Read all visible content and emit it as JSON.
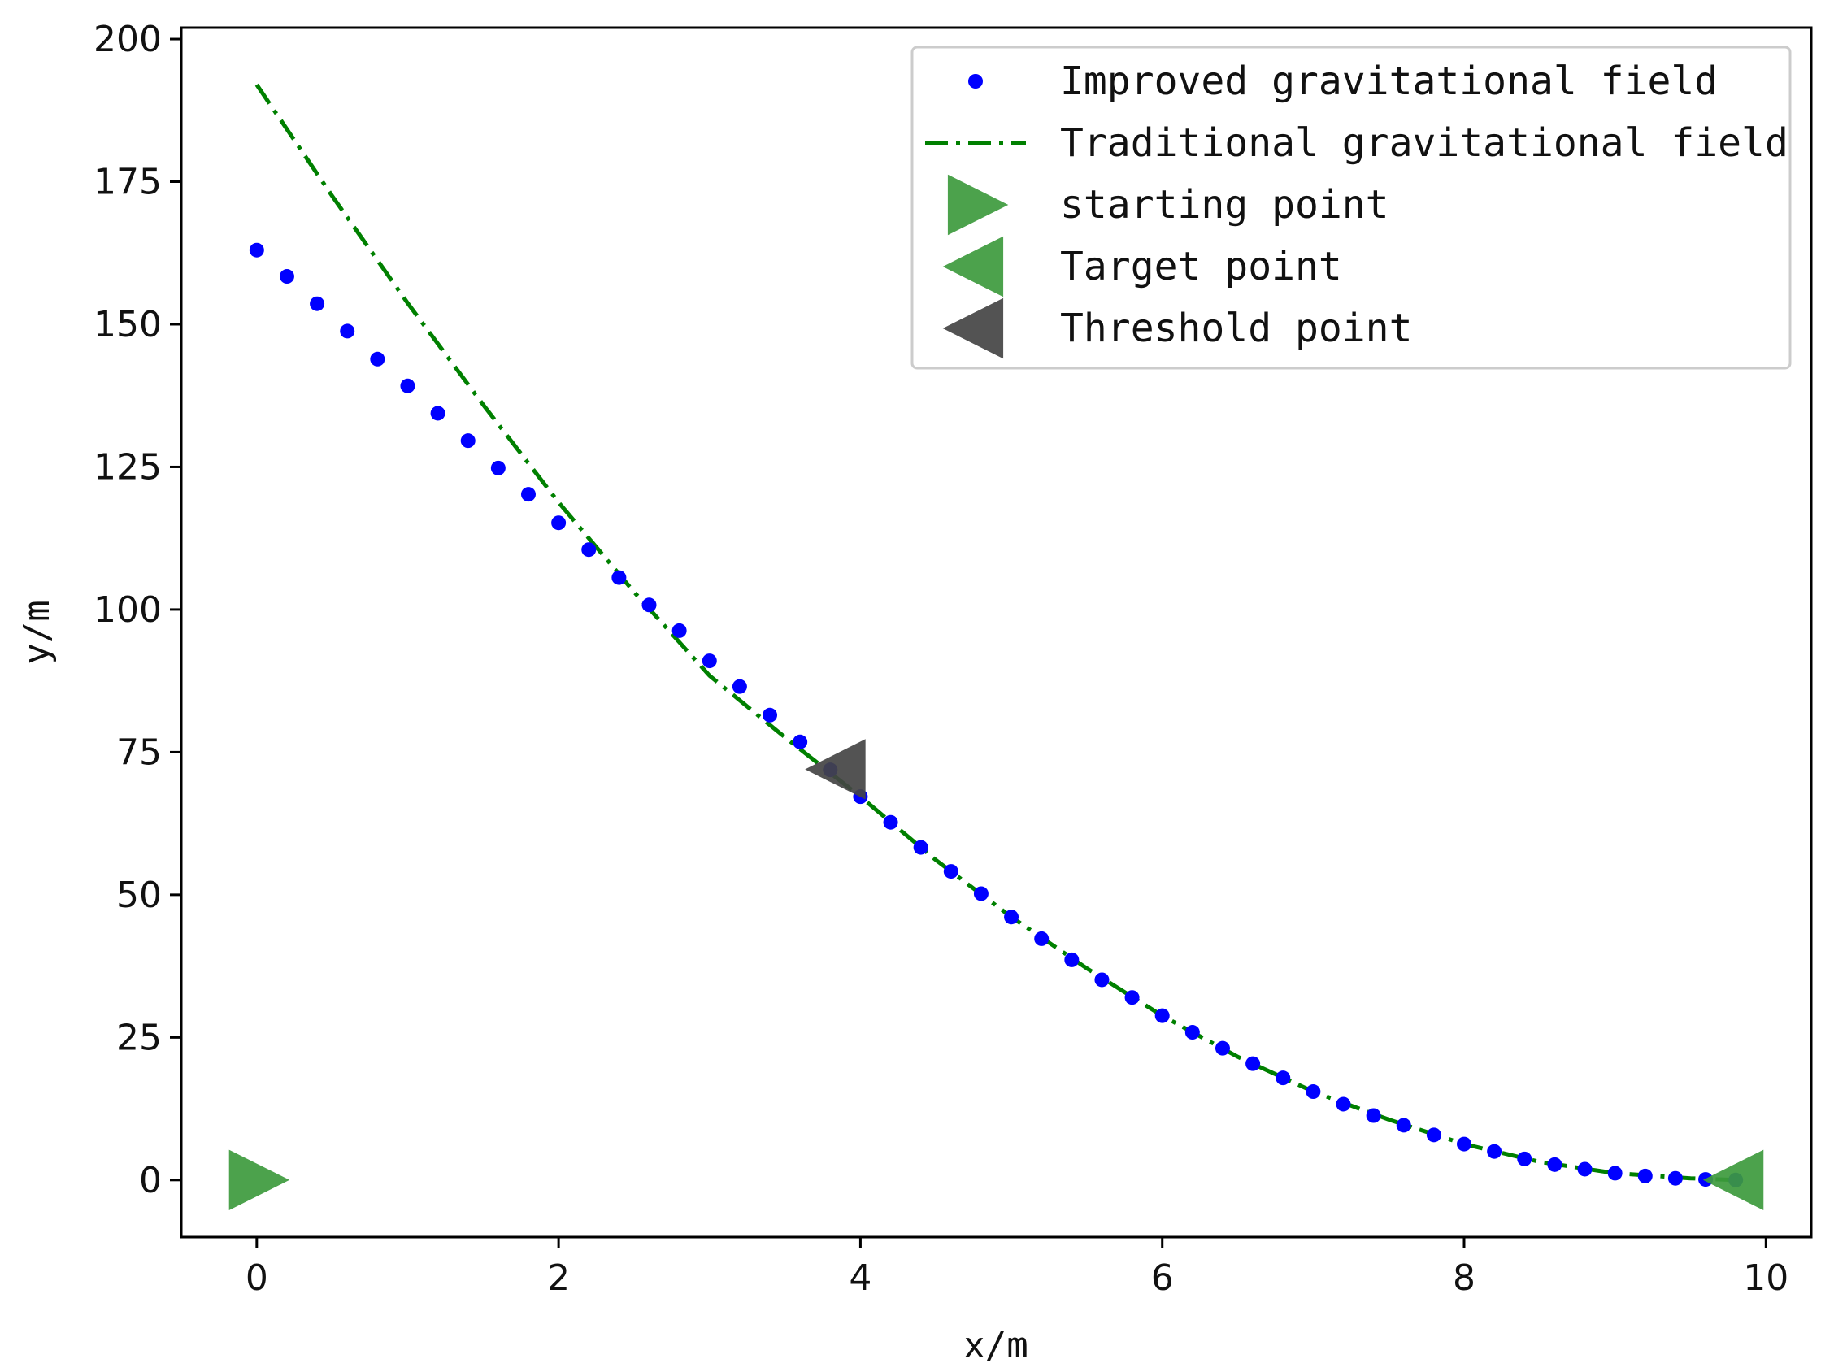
{
  "chart_data": {
    "type": "scatter",
    "xlabel": "x/m",
    "ylabel": "y/m",
    "xlim": [
      -0.5,
      10.3
    ],
    "ylim": [
      -10,
      202
    ],
    "xticks": [
      0,
      2,
      4,
      6,
      8,
      10
    ],
    "yticks": [
      0,
      25,
      50,
      75,
      100,
      125,
      150,
      175,
      200
    ],
    "xtick_labels": [
      "0",
      "2",
      "4",
      "6",
      "8",
      "10"
    ],
    "ytick_labels": [
      "0",
      "25",
      "50",
      "75",
      "100",
      "125",
      "150",
      "175",
      "200"
    ],
    "grid": false,
    "legend_position": "top-right",
    "series": [
      {
        "name": "Improved gravitational field",
        "kind": "dots",
        "color": "#0000ff",
        "x": [
          0,
          0.2,
          0.4,
          0.6,
          0.8,
          1.0,
          1.2,
          1.4,
          1.6,
          1.8,
          2.0,
          2.2,
          2.4,
          2.6,
          2.8,
          3.0,
          3.2,
          3.4,
          3.6,
          3.8,
          4.0,
          4.2,
          4.4,
          4.6,
          4.8,
          5.0,
          5.2,
          5.4,
          5.6,
          5.8,
          6.0,
          6.2,
          6.4,
          6.6,
          6.8,
          7.0,
          7.2,
          7.4,
          7.6,
          7.8,
          8.0,
          8.2,
          8.4,
          8.6,
          8.8,
          9.0,
          9.2,
          9.4,
          9.6,
          9.8
        ],
        "y": [
          163,
          158.4,
          153.6,
          148.8,
          143.9,
          139.2,
          134.4,
          129.6,
          124.8,
          120.2,
          115.2,
          110.5,
          105.6,
          100.8,
          96.3,
          91,
          86.5,
          81.5,
          76.8,
          71.9,
          67.2,
          62.7,
          58.3,
          54.1,
          50.2,
          46.1,
          42.3,
          38.6,
          35.1,
          32,
          28.8,
          25.9,
          23.1,
          20.4,
          17.9,
          15.5,
          13.3,
          11.3,
          9.6,
          7.9,
          6.3,
          5,
          3.7,
          2.7,
          1.9,
          1.2,
          0.7,
          0.3,
          0.1,
          0
        ]
      },
      {
        "name": "Traditional gravitational field",
        "kind": "dashdot-line",
        "color": "#008000",
        "x": [
          0,
          0.5,
          1.0,
          1.5,
          2.0,
          2.5,
          3.0,
          3.5,
          4.0,
          4.5,
          5.0,
          5.5,
          6.0,
          6.5,
          7.0,
          7.5,
          8.0,
          8.5,
          9.0,
          9.5,
          9.8
        ],
        "y": [
          192,
          172.5,
          153.7,
          135.9,
          118.8,
          103.1,
          88.4,
          77.6,
          67.2,
          56.1,
          46.1,
          37.1,
          28.8,
          21.6,
          15.5,
          10.6,
          6.3,
          3.2,
          1.2,
          0.3,
          0
        ]
      }
    ],
    "markers": [
      {
        "name": "starting point",
        "shape": "triangle-right",
        "color": "#3d9a3d",
        "x": 0,
        "y": 0
      },
      {
        "name": "Target point",
        "shape": "triangle-left",
        "color": "#3d9a3d",
        "x": 9.8,
        "y": 0
      },
      {
        "name": "Threshold point",
        "shape": "triangle-left",
        "color": "#444444",
        "x": 3.85,
        "y": 72
      }
    ],
    "legend": [
      {
        "label": "Improved gravitational field",
        "symbol": "dot",
        "color": "#0000ff"
      },
      {
        "label": "Traditional gravitational field",
        "symbol": "dashdot",
        "color": "#008000"
      },
      {
        "label": "starting point",
        "symbol": "triangle-right",
        "color": "#3d9a3d"
      },
      {
        "label": "Target point",
        "symbol": "triangle-left",
        "color": "#3d9a3d"
      },
      {
        "label": "Threshold point",
        "symbol": "triangle-left",
        "color": "#444444"
      }
    ]
  }
}
